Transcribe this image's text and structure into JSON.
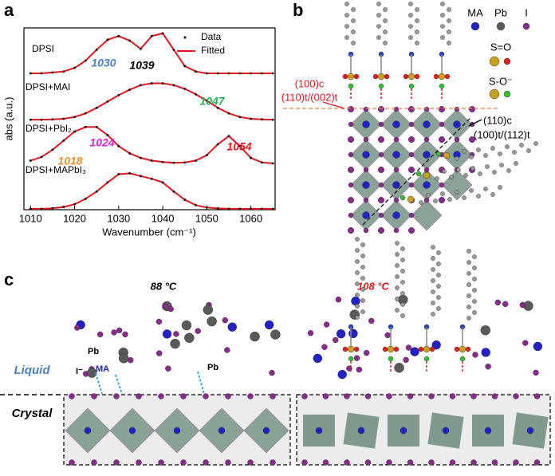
{
  "chart_data": {
    "type": "line",
    "panel": "a",
    "xlabel": "Wavenumber (cm⁻¹)",
    "ylabel": "abs (a.u.)",
    "xlim": [
      1008.5,
      1065.5
    ],
    "xticks": [
      1010,
      1020,
      1030,
      1040,
      1050,
      1060
    ],
    "ylim": [
      0,
      10
    ],
    "legend": [
      {
        "name": "Data",
        "color": "#000000"
      },
      {
        "name": "Fitted",
        "color": "#e8141c"
      }
    ],
    "x": [
      1010,
      1012.5,
      1015,
      1017.5,
      1020,
      1022.5,
      1025,
      1027.5,
      1030,
      1032.5,
      1035,
      1037.5,
      1040,
      1042.5,
      1045,
      1047.5,
      1050,
      1052.5,
      1055,
      1057.5,
      1060,
      1062.5,
      1065
    ],
    "traces": [
      {
        "label": "DPSI",
        "values": [
          7.5,
          7.5,
          7.55,
          7.6,
          7.8,
          8.2,
          8.8,
          9.35,
          9.55,
          9.3,
          8.85,
          9.55,
          9.7,
          8.8,
          7.9,
          7.6,
          7.5,
          7.5,
          7.5,
          7.5,
          7.5,
          7.5,
          7.5
        ]
      },
      {
        "label": "DPSI+MAI",
        "values": [
          4.95,
          4.95,
          4.97,
          5.0,
          5.1,
          5.3,
          5.6,
          5.95,
          6.3,
          6.6,
          6.85,
          6.95,
          6.95,
          6.85,
          6.65,
          6.35,
          6.0,
          5.6,
          5.3,
          5.1,
          5.0,
          4.97,
          4.95
        ]
      },
      {
        "label": "DPSI+PbI₂",
        "values": [
          2.7,
          2.9,
          3.3,
          3.8,
          4.3,
          4.55,
          4.55,
          4.1,
          3.5,
          3.1,
          2.85,
          2.7,
          2.62,
          2.58,
          2.6,
          2.7,
          3.0,
          3.6,
          4.05,
          3.5,
          2.85,
          2.6,
          2.55
        ]
      },
      {
        "label": "DPSI+MAPbI₃",
        "values": [
          0.05,
          0.05,
          0.08,
          0.15,
          0.3,
          0.6,
          1.0,
          1.5,
          1.95,
          2.0,
          1.85,
          1.7,
          1.5,
          1.0,
          0.55,
          0.25,
          0.12,
          0.07,
          0.05,
          0.05,
          0.05,
          0.05,
          0.05
        ]
      }
    ],
    "annotations": [
      {
        "label": "1030",
        "color": "#4a7fc0"
      },
      {
        "label": "1039",
        "color": "#000000"
      },
      {
        "label": "1047",
        "color": "#22b35a"
      },
      {
        "label": "1024",
        "color": "#e020d8"
      },
      {
        "label": "1018",
        "color": "#f09030"
      },
      {
        "label": "1054",
        "color": "#e8141c"
      }
    ]
  },
  "panel_b": {
    "label": "b",
    "legend": {
      "ma": "MA",
      "pb": "Pb",
      "i": "I",
      "so": "S=O",
      "sominus": "S-O⁻"
    },
    "plane1": {
      "line1": "(100)c",
      "line2": "(110)t/(002)t"
    },
    "plane2": {
      "line1": "(110)c",
      "line2": "(100)t/(112)t"
    }
  },
  "panel_c": {
    "label": "c",
    "left_temp": "88 °C",
    "right_temp": "108 °C",
    "liquid": "Liquid",
    "crystal": "Crystal",
    "atom_labels": [
      "Pb",
      "MA",
      "I⁻",
      "Pb"
    ]
  }
}
